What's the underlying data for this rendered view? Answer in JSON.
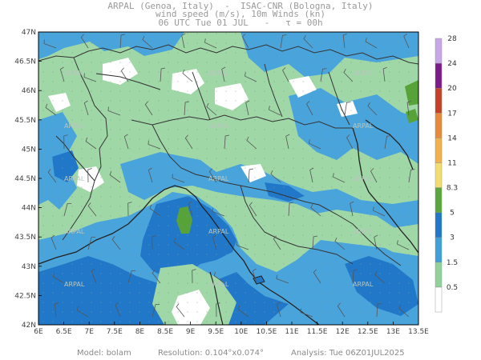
{
  "header": {
    "line1": "ARPAL (Genoa, Italy)  -  ISAC-CNR (Bologna, Italy)",
    "line2": "wind speed (m/s), 10m Winds (kn)",
    "line3": "06 UTC Tue 01 JUL   -   τ = 00h"
  },
  "map": {
    "lat_labels": [
      "47N",
      "46.5N",
      "46N",
      "45.5N",
      "45N",
      "44.5N",
      "44N",
      "43.5N",
      "43N",
      "42.5N",
      "42N"
    ],
    "lon_labels": [
      "6E",
      "6.5E",
      "7E",
      "7.5E",
      "8E",
      "8.5E",
      "9E",
      "9.5E",
      "10E",
      "10.5E",
      "11E",
      "11.5E",
      "12E",
      "12.5E",
      "13E",
      "13.5E"
    ],
    "lat_range": [
      42,
      47
    ],
    "lon_range": [
      6,
      13.5
    ],
    "watermark": "ARPAL",
    "colors": {
      "white": "#ffffff",
      "light_green": "#9fd7a6",
      "blue": "#4aa4dc",
      "dark_blue": "#2278c8",
      "olive": "#58a23a",
      "coast": "#222222",
      "border": "#333333"
    }
  },
  "colorbar": {
    "labels": [
      "0.5",
      "1.5",
      "3",
      "5",
      "8.3",
      "11",
      "14",
      "17",
      "20",
      "24",
      "28"
    ],
    "colors": [
      "#ffffff",
      "#8fd39b",
      "#3fa1dc",
      "#1f78c8",
      "#5aa83c",
      "#f5dc6e",
      "#f5b04a",
      "#e98a3a",
      "#c74126",
      "#7f1a8c",
      "#c8a6e8"
    ]
  },
  "footer": {
    "model": "Model: bolam",
    "resolution": "Resolution: 0.104°x0.074°",
    "analysis": "Analysis: Tue 06Z01JUL2025"
  }
}
